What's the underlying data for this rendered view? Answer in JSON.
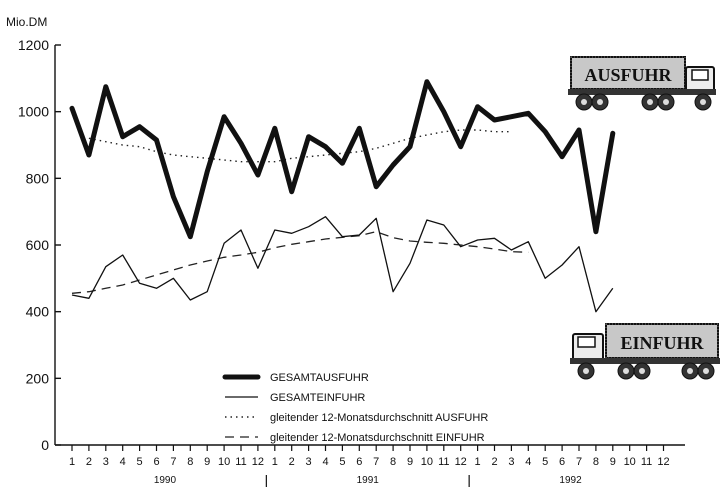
{
  "chart_data": {
    "type": "line",
    "ylabel": "Mio.DM",
    "ylim": [
      0,
      1200
    ],
    "y_ticks": [
      0,
      200,
      400,
      600,
      800,
      1000,
      1200
    ],
    "month_labels": [
      "1",
      "2",
      "3",
      "4",
      "5",
      "6",
      "7",
      "8",
      "9",
      "10",
      "11",
      "12",
      "1",
      "2",
      "3",
      "4",
      "5",
      "6",
      "7",
      "8",
      "9",
      "10",
      "11",
      "12",
      "1",
      "2",
      "3",
      "4",
      "5",
      "6",
      "7",
      "8",
      "9",
      "10",
      "11",
      "12"
    ],
    "years": [
      "1990",
      "1991",
      "1992"
    ],
    "grid": false,
    "legend_position": "bottom-center",
    "labels": {
      "export": "AUSFUHR",
      "import": "EINFUHR"
    },
    "series": [
      {
        "name": "GESAMTAUSFUHR",
        "style": "thick",
        "values": [
          1010,
          870,
          1075,
          925,
          955,
          915,
          745,
          625,
          820,
          985,
          905,
          810,
          950,
          760,
          925,
          895,
          845,
          950,
          775,
          840,
          895,
          1090,
          1000,
          895,
          1015,
          975,
          985,
          995,
          940,
          865,
          945,
          640,
          935,
          null,
          null,
          null
        ]
      },
      {
        "name": "GESAMTEINFUHR",
        "style": "thin",
        "values": [
          450,
          440,
          535,
          570,
          485,
          470,
          500,
          435,
          460,
          605,
          645,
          530,
          645,
          635,
          655,
          685,
          625,
          630,
          680,
          460,
          545,
          675,
          660,
          595,
          615,
          620,
          585,
          610,
          500,
          540,
          595,
          400,
          470,
          null,
          null,
          null
        ]
      },
      {
        "name": "gleitender 12-Monatsdurchschnitt AUSFUHR",
        "style": "dotted",
        "values": [
          null,
          920,
          910,
          900,
          895,
          880,
          870,
          865,
          860,
          855,
          850,
          850,
          850,
          860,
          865,
          870,
          875,
          880,
          890,
          905,
          920,
          930,
          940,
          945,
          945,
          940,
          940,
          null,
          null,
          null,
          null,
          null,
          null,
          null,
          null,
          null
        ]
      },
      {
        "name": "gleitender 12-Monatsdurchschnitt EINFUHR",
        "style": "dashed",
        "values": [
          455,
          460,
          470,
          480,
          495,
          510,
          525,
          540,
          552,
          563,
          570,
          578,
          592,
          602,
          610,
          618,
          623,
          628,
          640,
          622,
          612,
          608,
          605,
          600,
          595,
          588,
          580,
          578,
          null,
          null,
          null,
          null,
          null,
          null,
          null,
          null
        ]
      }
    ]
  }
}
